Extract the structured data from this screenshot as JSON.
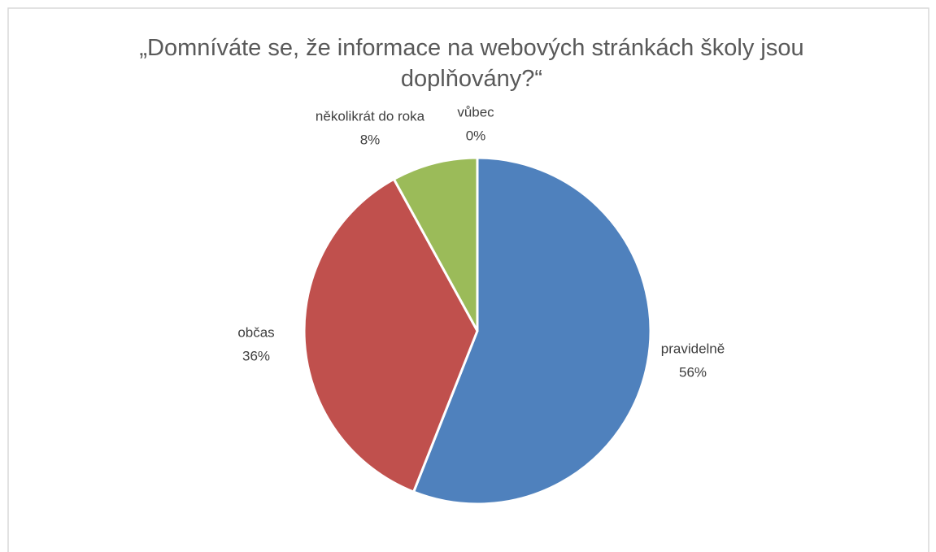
{
  "chart_data": {
    "type": "pie",
    "title": "„Domníváte se, že informace na webových stránkách školy jsou doplňovány?“",
    "categories": [
      "pravidelně",
      "občas",
      "několikrát do roka",
      "vůbec"
    ],
    "values": [
      56,
      36,
      8,
      0
    ],
    "value_labels": [
      "56%",
      "36%",
      "8%",
      "0%"
    ],
    "colors": [
      "#4f81bd",
      "#c0504d",
      "#9bbb59",
      "#8064a2"
    ]
  }
}
